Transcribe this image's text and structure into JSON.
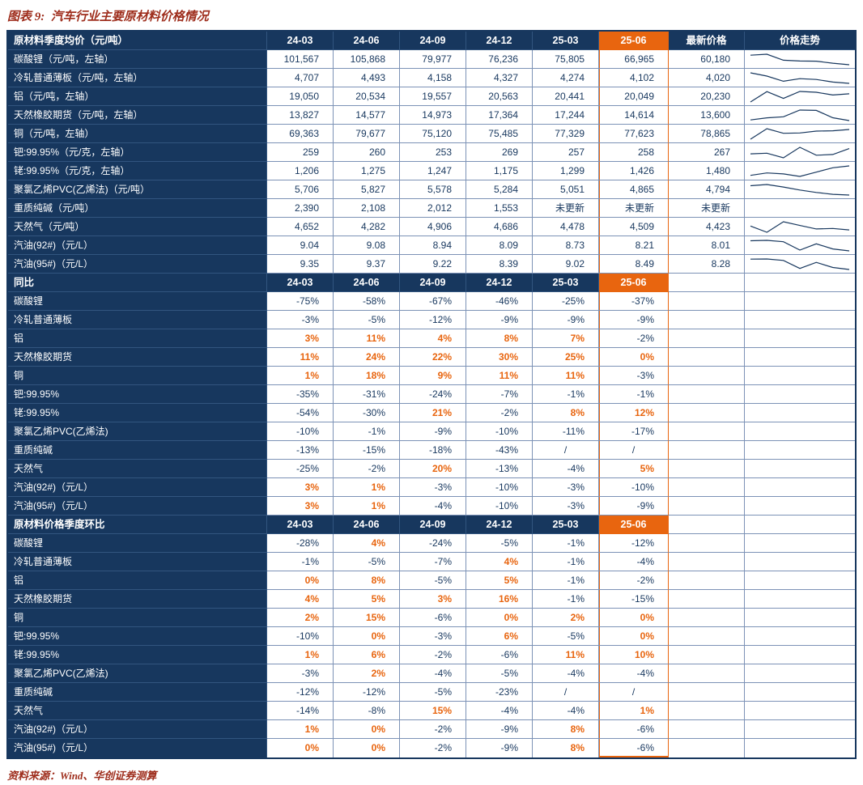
{
  "title": "图表 9:  汽车行业主要原材料价格情况",
  "source": "资料来源：Wind、华创证券测算",
  "colors": {
    "navy": "#17375E",
    "orange": "#E8650F",
    "grid": "#7C92B6",
    "title_red": "#9E2D1C"
  },
  "chart_data": {
    "type": "table",
    "quarter_columns": [
      "24-03",
      "24-06",
      "24-09",
      "24-12",
      "25-03",
      "25-06"
    ],
    "highlight_column": "25-06",
    "sections": [
      {
        "name": "原材料季度均价（元/吨）",
        "extra_columns": [
          "最新价格",
          "价格走势"
        ],
        "rows": [
          {
            "label": "碳酸锂（元/吨，左轴）",
            "values": [
              "101,567",
              "105,868",
              "79,977",
              "76,236",
              "75,805",
              "66,965"
            ],
            "latest": "60,180",
            "spark": [
              101567,
              105868,
              79977,
              76236,
              75805,
              66965,
              60180
            ]
          },
          {
            "label": "冷轧普通薄板（元/吨，左轴）",
            "values": [
              "4,707",
              "4,493",
              "4,158",
              "4,327",
              "4,274",
              "4,102"
            ],
            "latest": "4,020",
            "spark": [
              4707,
              4493,
              4158,
              4327,
              4274,
              4102,
              4020
            ]
          },
          {
            "label": "铝（元/吨，左轴）",
            "values": [
              "19,050",
              "20,534",
              "19,557",
              "20,563",
              "20,441",
              "20,049"
            ],
            "latest": "20,230",
            "spark": [
              19050,
              20534,
              19557,
              20563,
              20441,
              20049,
              20230
            ]
          },
          {
            "label": "天然橡胶期货（元/吨，左轴）",
            "values": [
              "13,827",
              "14,577",
              "14,973",
              "17,364",
              "17,244",
              "14,614"
            ],
            "latest": "13,600",
            "spark": [
              13827,
              14577,
              14973,
              17364,
              17244,
              14614,
              13600
            ]
          },
          {
            "label": "铜（元/吨，左轴）",
            "values": [
              "69,363",
              "79,677",
              "75,120",
              "75,485",
              "77,329",
              "77,623"
            ],
            "latest": "78,865",
            "spark": [
              69363,
              79677,
              75120,
              75485,
              77329,
              77623,
              78865
            ]
          },
          {
            "label": "钯:99.95%（元/克，左轴）",
            "values": [
              "259",
              "260",
              "253",
              "269",
              "257",
              "258"
            ],
            "latest": "267",
            "spark": [
              259,
              260,
              253,
              269,
              257,
              258,
              267
            ]
          },
          {
            "label": "铑:99.95%（元/克，左轴）",
            "values": [
              "1,206",
              "1,275",
              "1,247",
              "1,175",
              "1,299",
              "1,426"
            ],
            "latest": "1,480",
            "spark": [
              1206,
              1275,
              1247,
              1175,
              1299,
              1426,
              1480
            ]
          },
          {
            "label": "聚氯乙烯PVC(乙烯法)（元/吨）",
            "values": [
              "5,706",
              "5,827",
              "5,578",
              "5,284",
              "5,051",
              "4,865"
            ],
            "latest": "4,794",
            "spark": [
              5706,
              5827,
              5578,
              5284,
              5051,
              4865,
              4794
            ]
          },
          {
            "label": "重质纯碱（元/吨）",
            "values": [
              "2,390",
              "2,108",
              "2,012",
              "1,553",
              "未更新",
              "未更新"
            ],
            "latest": "未更新",
            "spark": null
          },
          {
            "label": "天然气（元/吨）",
            "values": [
              "4,652",
              "4,282",
              "4,906",
              "4,686",
              "4,478",
              "4,509"
            ],
            "latest": "4,423",
            "spark": [
              4652,
              4282,
              4906,
              4686,
              4478,
              4509,
              4423
            ]
          },
          {
            "label": "汽油(92#)（元/L）",
            "values": [
              "9.04",
              "9.08",
              "8.94",
              "8.09",
              "8.73",
              "8.21"
            ],
            "latest": "8.01",
            "spark": [
              9.04,
              9.08,
              8.94,
              8.09,
              8.73,
              8.21,
              8.01
            ]
          },
          {
            "label": "汽油(95#)（元/L）",
            "values": [
              "9.35",
              "9.37",
              "9.22",
              "8.39",
              "9.02",
              "8.49"
            ],
            "latest": "8.28",
            "spark": [
              9.35,
              9.37,
              9.22,
              8.39,
              9.02,
              8.49,
              8.28
            ]
          }
        ]
      },
      {
        "name": "同比",
        "rows": [
          {
            "label": "碳酸锂",
            "values": [
              "-75%",
              "-58%",
              "-67%",
              "-46%",
              "-25%",
              "-37%"
            ]
          },
          {
            "label": "冷轧普通薄板",
            "values": [
              "-3%",
              "-5%",
              "-12%",
              "-9%",
              "-9%",
              "-9%"
            ]
          },
          {
            "label": "铝",
            "values": [
              "3%",
              "11%",
              "4%",
              "8%",
              "7%",
              "-2%"
            ]
          },
          {
            "label": "天然橡胶期货",
            "values": [
              "11%",
              "24%",
              "22%",
              "30%",
              "25%",
              "0%"
            ]
          },
          {
            "label": "铜",
            "values": [
              "1%",
              "18%",
              "9%",
              "11%",
              "11%",
              "-3%"
            ]
          },
          {
            "label": "钯:99.95%",
            "values": [
              "-35%",
              "-31%",
              "-24%",
              "-7%",
              "-1%",
              "-1%"
            ]
          },
          {
            "label": "铑:99.95%",
            "values": [
              "-54%",
              "-30%",
              "21%",
              "-2%",
              "8%",
              "12%"
            ]
          },
          {
            "label": "聚氯乙烯PVC(乙烯法)",
            "values": [
              "-10%",
              "-1%",
              "-9%",
              "-10%",
              "-11%",
              "-17%"
            ]
          },
          {
            "label": "重质纯碱",
            "values": [
              "-13%",
              "-15%",
              "-18%",
              "-43%",
              "/",
              "/"
            ]
          },
          {
            "label": "天然气",
            "values": [
              "-25%",
              "-2%",
              "20%",
              "-13%",
              "-4%",
              "5%"
            ]
          },
          {
            "label": "汽油(92#)（元/L）",
            "values": [
              "3%",
              "1%",
              "-3%",
              "-10%",
              "-3%",
              "-10%"
            ]
          },
          {
            "label": "汽油(95#)（元/L）",
            "values": [
              "3%",
              "1%",
              "-4%",
              "-10%",
              "-3%",
              "-9%"
            ]
          }
        ]
      },
      {
        "name": "原材料价格季度环比",
        "rows": [
          {
            "label": "碳酸锂",
            "values": [
              "-28%",
              "4%",
              "-24%",
              "-5%",
              "-1%",
              "-12%"
            ]
          },
          {
            "label": "冷轧普通薄板",
            "values": [
              "-1%",
              "-5%",
              "-7%",
              "4%",
              "-1%",
              "-4%"
            ]
          },
          {
            "label": "铝",
            "values": [
              "0%",
              "8%",
              "-5%",
              "5%",
              "-1%",
              "-2%"
            ]
          },
          {
            "label": "天然橡胶期货",
            "values": [
              "4%",
              "5%",
              "3%",
              "16%",
              "-1%",
              "-15%"
            ]
          },
          {
            "label": "铜",
            "values": [
              "2%",
              "15%",
              "-6%",
              "0%",
              "2%",
              "0%"
            ]
          },
          {
            "label": "钯:99.95%",
            "values": [
              "-10%",
              "0%",
              "-3%",
              "6%",
              "-5%",
              "0%"
            ]
          },
          {
            "label": "铑:99.95%",
            "values": [
              "1%",
              "6%",
              "-2%",
              "-6%",
              "11%",
              "10%"
            ]
          },
          {
            "label": "聚氯乙烯PVC(乙烯法)",
            "values": [
              "-3%",
              "2%",
              "-4%",
              "-5%",
              "-4%",
              "-4%"
            ]
          },
          {
            "label": "重质纯碱",
            "values": [
              "-12%",
              "-12%",
              "-5%",
              "-23%",
              "/",
              "/"
            ]
          },
          {
            "label": "天然气",
            "values": [
              "-14%",
              "-8%",
              "15%",
              "-4%",
              "-4%",
              "1%"
            ]
          },
          {
            "label": "汽油(92#)（元/L）",
            "values": [
              "1%",
              "0%",
              "-2%",
              "-9%",
              "8%",
              "-6%"
            ]
          },
          {
            "label": "汽油(95#)（元/L）",
            "values": [
              "0%",
              "0%",
              "-2%",
              "-9%",
              "8%",
              "-6%"
            ]
          }
        ]
      }
    ]
  }
}
